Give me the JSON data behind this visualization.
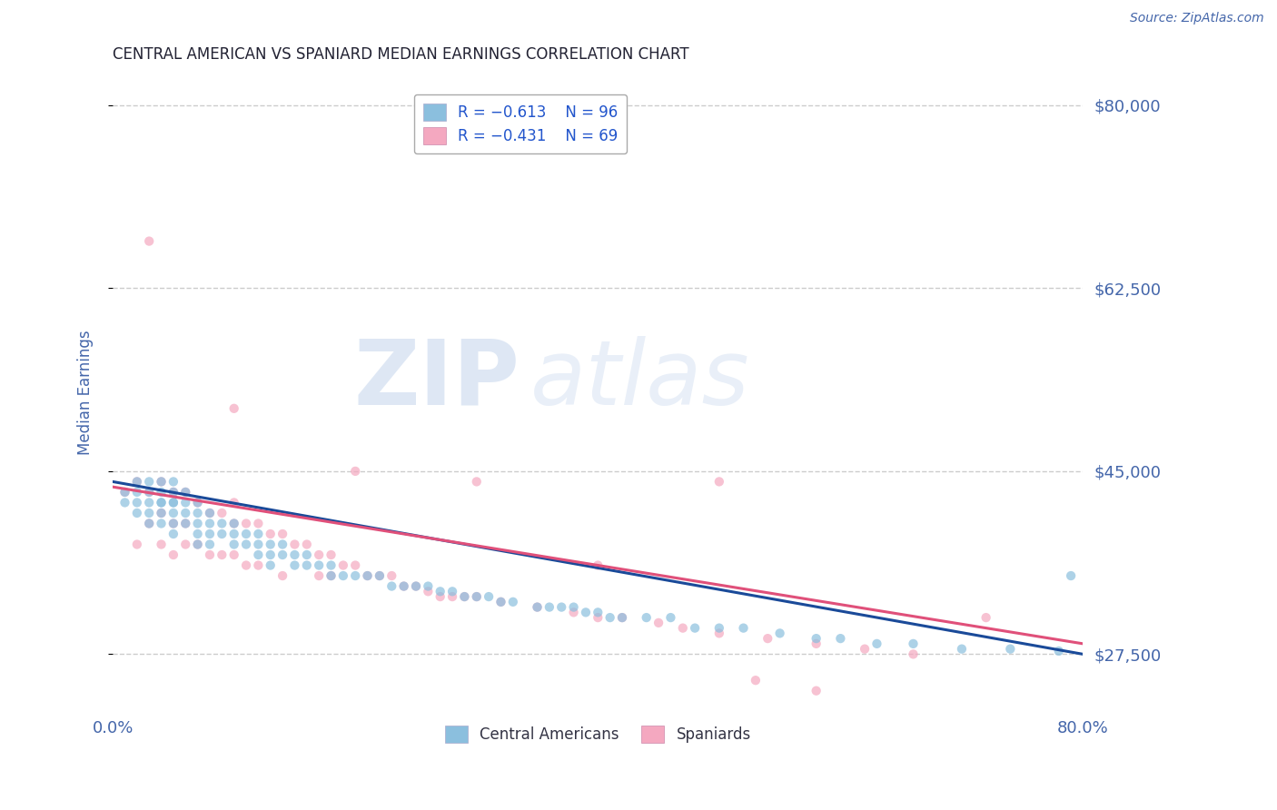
{
  "title": "CENTRAL AMERICAN VS SPANIARD MEDIAN EARNINGS CORRELATION CHART",
  "source_text": "Source: ZipAtlas.com",
  "ylabel": "Median Earnings",
  "xlim": [
    0.0,
    0.8
  ],
  "ylim": [
    22000,
    83000
  ],
  "yticks": [
    27500,
    45000,
    62500,
    80000
  ],
  "ytick_labels": [
    "$27,500",
    "$45,000",
    "$62,500",
    "$80,000"
  ],
  "blue_scatter_x": [
    0.01,
    0.01,
    0.02,
    0.02,
    0.02,
    0.02,
    0.03,
    0.03,
    0.03,
    0.03,
    0.03,
    0.04,
    0.04,
    0.04,
    0.04,
    0.04,
    0.04,
    0.05,
    0.05,
    0.05,
    0.05,
    0.05,
    0.05,
    0.05,
    0.06,
    0.06,
    0.06,
    0.06,
    0.07,
    0.07,
    0.07,
    0.07,
    0.07,
    0.08,
    0.08,
    0.08,
    0.08,
    0.09,
    0.09,
    0.1,
    0.1,
    0.1,
    0.11,
    0.11,
    0.12,
    0.12,
    0.12,
    0.13,
    0.13,
    0.13,
    0.14,
    0.14,
    0.15,
    0.15,
    0.16,
    0.16,
    0.17,
    0.18,
    0.18,
    0.19,
    0.2,
    0.21,
    0.22,
    0.23,
    0.24,
    0.25,
    0.26,
    0.27,
    0.28,
    0.29,
    0.3,
    0.31,
    0.32,
    0.33,
    0.35,
    0.36,
    0.37,
    0.38,
    0.39,
    0.4,
    0.41,
    0.42,
    0.44,
    0.46,
    0.48,
    0.5,
    0.52,
    0.55,
    0.58,
    0.6,
    0.63,
    0.66,
    0.7,
    0.74,
    0.78,
    0.79
  ],
  "blue_scatter_y": [
    42000,
    43000,
    44000,
    42000,
    43000,
    41000,
    44000,
    42000,
    43000,
    40000,
    41000,
    44000,
    43000,
    42000,
    41000,
    40000,
    42000,
    44000,
    43000,
    42000,
    41000,
    40000,
    42000,
    39000,
    43000,
    42000,
    41000,
    40000,
    42000,
    41000,
    40000,
    39000,
    38000,
    41000,
    40000,
    39000,
    38000,
    40000,
    39000,
    40000,
    39000,
    38000,
    39000,
    38000,
    39000,
    38000,
    37000,
    38000,
    37000,
    36000,
    38000,
    37000,
    37000,
    36000,
    37000,
    36000,
    36000,
    36000,
    35000,
    35000,
    35000,
    35000,
    35000,
    34000,
    34000,
    34000,
    34000,
    33500,
    33500,
    33000,
    33000,
    33000,
    32500,
    32500,
    32000,
    32000,
    32000,
    32000,
    31500,
    31500,
    31000,
    31000,
    31000,
    31000,
    30000,
    30000,
    30000,
    29500,
    29000,
    29000,
    28500,
    28500,
    28000,
    28000,
    27800,
    35000
  ],
  "pink_scatter_x": [
    0.01,
    0.02,
    0.02,
    0.03,
    0.03,
    0.04,
    0.04,
    0.04,
    0.05,
    0.05,
    0.05,
    0.06,
    0.06,
    0.06,
    0.07,
    0.07,
    0.08,
    0.08,
    0.09,
    0.09,
    0.1,
    0.1,
    0.1,
    0.11,
    0.11,
    0.12,
    0.12,
    0.13,
    0.14,
    0.14,
    0.15,
    0.16,
    0.17,
    0.17,
    0.18,
    0.18,
    0.19,
    0.2,
    0.21,
    0.22,
    0.23,
    0.24,
    0.25,
    0.26,
    0.27,
    0.28,
    0.29,
    0.3,
    0.32,
    0.35,
    0.38,
    0.4,
    0.42,
    0.45,
    0.47,
    0.5,
    0.54,
    0.58,
    0.62,
    0.66,
    0.03,
    0.1,
    0.2,
    0.3,
    0.4,
    0.5,
    0.53,
    0.58,
    0.72
  ],
  "pink_scatter_y": [
    43000,
    44000,
    38000,
    43000,
    40000,
    44000,
    41000,
    38000,
    43000,
    40000,
    37000,
    43000,
    40000,
    38000,
    42000,
    38000,
    41000,
    37000,
    41000,
    37000,
    42000,
    40000,
    37000,
    40000,
    36000,
    40000,
    36000,
    39000,
    39000,
    35000,
    38000,
    38000,
    37000,
    35000,
    37000,
    35000,
    36000,
    36000,
    35000,
    35000,
    35000,
    34000,
    34000,
    33500,
    33000,
    33000,
    33000,
    33000,
    32500,
    32000,
    31500,
    31000,
    31000,
    30500,
    30000,
    29500,
    29000,
    28500,
    28000,
    27500,
    67000,
    51000,
    45000,
    44000,
    36000,
    44000,
    25000,
    24000,
    31000
  ],
  "blue_line_x": [
    0.0,
    0.8
  ],
  "blue_line_y": [
    44000,
    27500
  ],
  "pink_line_x": [
    0.0,
    0.8
  ],
  "pink_line_y": [
    43500,
    28500
  ],
  "scatter_alpha": 0.7,
  "scatter_size": 55,
  "blue_color": "#8bbfde",
  "pink_color": "#f4a8c0",
  "blue_line_color": "#1a4a99",
  "pink_line_color": "#e0507a",
  "grid_color": "#cccccc",
  "grid_style": "--",
  "watermark_zip": "ZIP",
  "watermark_atlas": "atlas",
  "watermark_color_zip": "#c8d8ee",
  "watermark_color_atlas": "#c8d8ee",
  "axis_label_color": "#4466aa",
  "title_color": "#222233",
  "background_color": "#ffffff",
  "legend_label_color": "#2255cc",
  "source_color": "#4466aa"
}
